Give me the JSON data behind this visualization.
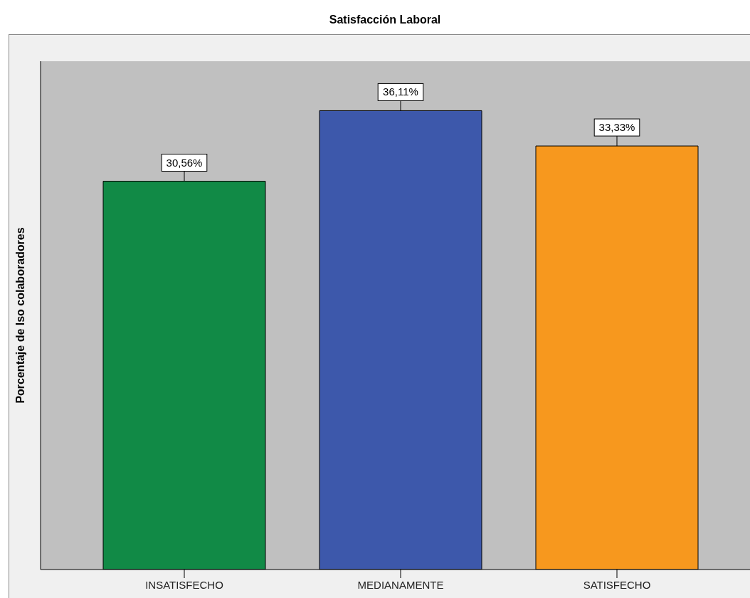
{
  "chart_data": {
    "type": "bar",
    "title": "Satisfacción Laboral",
    "ylabel": "Porcentaje de lso colaboradores",
    "categories": [
      "INSATISFECHO",
      "MEDIANAMENTE",
      "SATISFECHO"
    ],
    "values": [
      30.56,
      36.11,
      33.33
    ],
    "value_labels": [
      "30,56%",
      "36,11%",
      "33,33%"
    ],
    "colors": [
      "#118a46",
      "#3d58ab",
      "#f7981e"
    ],
    "ylim": [
      0,
      40
    ],
    "tick_labels": "x"
  }
}
